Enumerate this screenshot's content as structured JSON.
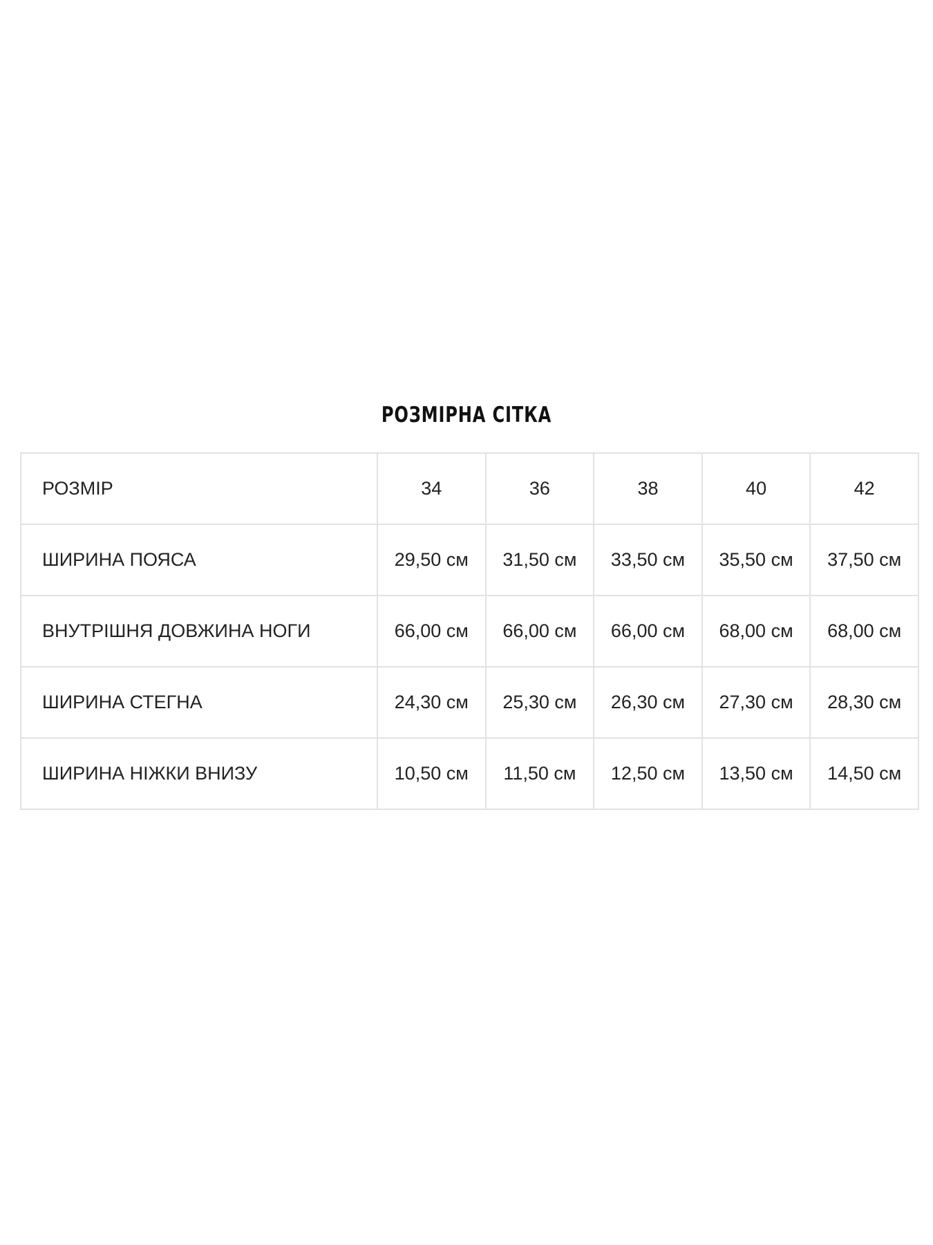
{
  "title": "РОЗМІРНА СІТКА",
  "table": {
    "header": {
      "label": "РОЗМІР",
      "sizes": [
        "34",
        "36",
        "38",
        "40",
        "42"
      ]
    },
    "rows": [
      {
        "label": "ШИРИНА ПОЯСА",
        "values": [
          "29,50 см",
          "31,50 см",
          "33,50 см",
          "35,50 см",
          "37,50 см"
        ]
      },
      {
        "label": "ВНУТРІШНЯ ДОВЖИНА НОГИ",
        "values": [
          "66,00 см",
          "66,00 см",
          "66,00 см",
          "68,00 см",
          "68,00 см"
        ]
      },
      {
        "label": "ШИРИНА СТЕГНА",
        "values": [
          "24,30 см",
          "25,30 см",
          "26,30 см",
          "27,30 см",
          "28,30 см"
        ]
      },
      {
        "label": "ШИРИНА НІЖКИ ВНИЗУ",
        "values": [
          "10,50 см",
          "11,50 см",
          "12,50 см",
          "13,50 см",
          "14,50 см"
        ]
      }
    ]
  }
}
